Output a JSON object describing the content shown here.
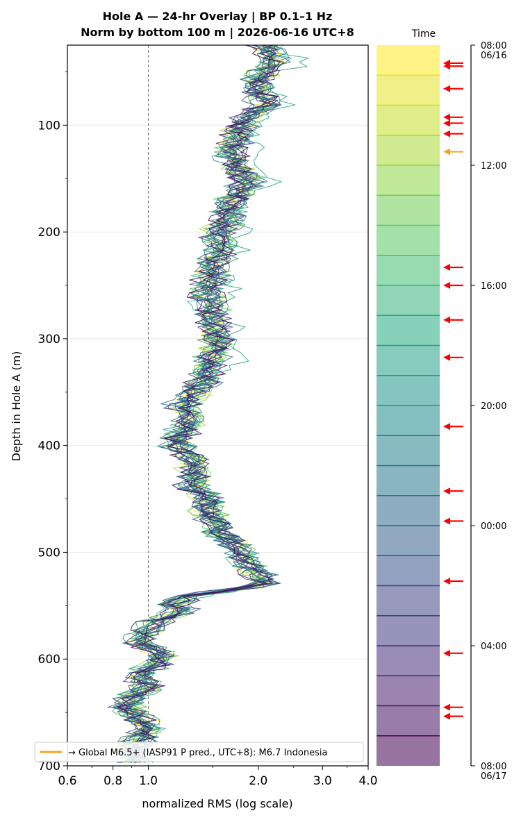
{
  "chart_data": {
    "type": "line",
    "title_line1": "Hole A — 24-hr Overlay  |  BP 0.1–1 Hz",
    "title_line2": "Norm by bottom 100 m  |  2026-06-16 UTC+8",
    "xlabel": "normalized RMS  (log scale)",
    "ylabel": "Depth in Hole A (m)",
    "x_scale": "log",
    "xlim": [
      0.6,
      4.0
    ],
    "ylim": [
      700,
      25
    ],
    "y_inverted": true,
    "x_ticks": [
      {
        "value": 0.6,
        "label": "0.6"
      },
      {
        "value": 0.8,
        "label": "0.8"
      },
      {
        "value": 1.0,
        "label": "1.0"
      },
      {
        "value": 2.0,
        "label": "2.0"
      },
      {
        "value": 3.0,
        "label": "3.0"
      },
      {
        "value": 4.0,
        "label": "4.0"
      }
    ],
    "y_ticks": [
      {
        "value": 100,
        "label": "100"
      },
      {
        "value": 200,
        "label": "200"
      },
      {
        "value": 300,
        "label": "300"
      },
      {
        "value": 400,
        "label": "400"
      },
      {
        "value": 500,
        "label": "500"
      },
      {
        "value": 600,
        "label": "600"
      },
      {
        "value": 700,
        "label": "700"
      }
    ],
    "reference_line_x": 1.0,
    "grid": "horizontal",
    "colormap": "viridis",
    "profile": {
      "depth": [
        25,
        40,
        55,
        70,
        80,
        95,
        110,
        125,
        140,
        150,
        160,
        175,
        190,
        200,
        215,
        230,
        245,
        260,
        275,
        290,
        305,
        320,
        335,
        350,
        360,
        375,
        390,
        400,
        410,
        425,
        440,
        450,
        460,
        470,
        480,
        490,
        500,
        510,
        520,
        530,
        540,
        548,
        555,
        565,
        575,
        585,
        595,
        605,
        615,
        625,
        635,
        645,
        655,
        665,
        675,
        685,
        700
      ],
      "rms": [
        2.1,
        2.2,
        2.0,
        2.0,
        2.1,
        1.85,
        1.75,
        1.7,
        1.75,
        1.9,
        1.8,
        1.7,
        1.65,
        1.55,
        1.6,
        1.5,
        1.5,
        1.45,
        1.5,
        1.55,
        1.55,
        1.5,
        1.45,
        1.35,
        1.25,
        1.3,
        1.25,
        1.2,
        1.3,
        1.35,
        1.3,
        1.5,
        1.45,
        1.5,
        1.55,
        1.7,
        1.8,
        1.85,
        2.0,
        2.1,
        1.35,
        1.2,
        1.25,
        1.05,
        1.0,
        0.95,
        1.1,
        1.05,
        0.95,
        1.0,
        0.9,
        0.88,
        0.95,
        1.0,
        0.95,
        0.9,
        0.92
      ]
    },
    "hours": [
      "08",
      "09",
      "10",
      "11",
      "12",
      "13",
      "14",
      "15",
      "16",
      "17",
      "18",
      "19",
      "20",
      "21",
      "22",
      "23",
      "00",
      "01",
      "02",
      "03",
      "04",
      "05",
      "06",
      "07"
    ],
    "colorbar": {
      "label": "Time",
      "ticks": [
        {
          "hours_from_start": 0,
          "label": "08:00",
          "sublabel": "06/16"
        },
        {
          "hours_from_start": 4,
          "label": "12:00",
          "sublabel": ""
        },
        {
          "hours_from_start": 8,
          "label": "16:00",
          "sublabel": ""
        },
        {
          "hours_from_start": 12,
          "label": "20:00",
          "sublabel": ""
        },
        {
          "hours_from_start": 16,
          "label": "00:00",
          "sublabel": ""
        },
        {
          "hours_from_start": 20,
          "label": "04:00",
          "sublabel": ""
        },
        {
          "hours_from_start": 24,
          "label": "08:00",
          "sublabel": "06/17"
        }
      ],
      "event_arrows_hours": [
        0.6,
        0.7,
        1.45,
        2.4,
        2.6,
        2.95,
        3.55,
        7.4,
        8.0,
        9.15,
        10.4,
        12.7,
        14.85,
        15.85,
        17.85,
        20.25,
        22.05,
        22.35
      ],
      "event_arrow_color": "#ff0000",
      "highlight_arrow_hours": 3.55,
      "highlight_arrow_color": "#f5a623"
    },
    "legend": {
      "label": "→ Global M6.5+ (IASP91 P pred., UTC+8): M6.7 Indonesia",
      "color": "#f5a623",
      "position": "lower-left"
    }
  }
}
